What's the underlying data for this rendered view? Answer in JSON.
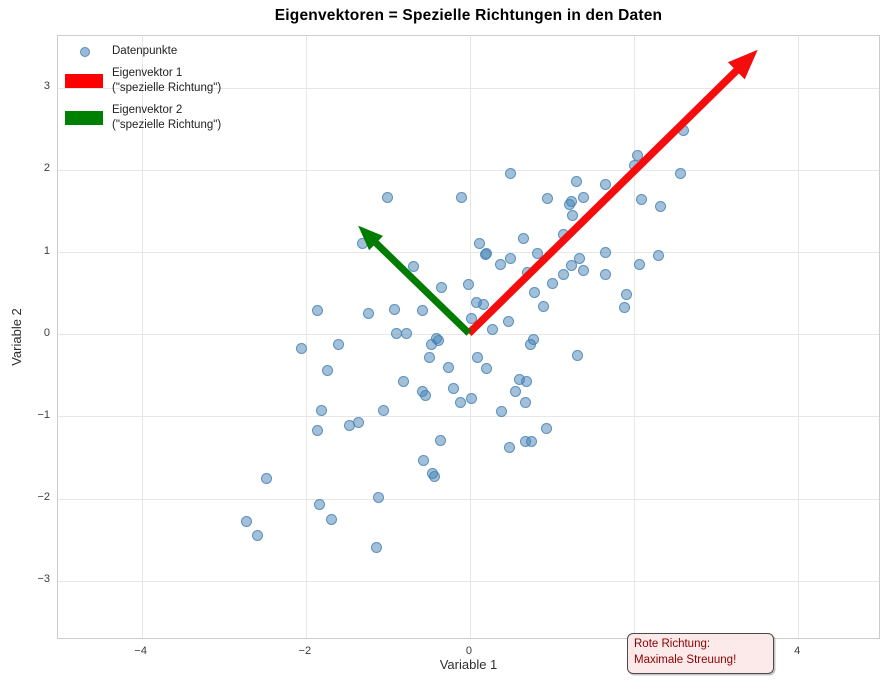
{
  "title": "Eigenvektoren = Spezielle Richtungen in den Daten",
  "legend": {
    "items": [
      {
        "label": "Datenpunkte",
        "marker": "circle",
        "color": "#90b4d2"
      },
      {
        "line1": "Eigenvektor 1",
        "line2": "(\"spezielle Richtung\")",
        "marker": "rect",
        "color": "#ff0000"
      },
      {
        "line1": "Eigenvektor 2",
        "line2": "(\"spezielle Richtung\")",
        "marker": "rect",
        "color": "#008000"
      }
    ]
  },
  "annotation": {
    "line1": "Rote Richtung:",
    "line2": "Maximale Streuung!",
    "text_color": "#8b0000",
    "bg_color": "#fbe9e8",
    "border_color": "#4a4a4a"
  },
  "chart_data": {
    "type": "scatter",
    "title": "Eigenvektoren = Spezielle Richtungen in den Daten",
    "xlabel": "Variable 1",
    "ylabel": "Variable 2",
    "xlim": [
      -5.02,
      5.01
    ],
    "ylim": [
      -3.72,
      3.63
    ],
    "xticks": [
      -4,
      -2,
      0,
      2,
      4
    ],
    "yticks": [
      -3,
      -2,
      -1,
      0,
      1,
      2,
      3
    ],
    "grid": true,
    "legend_position": "upper left",
    "point_color": "#4682b4",
    "point_alpha": 0.55,
    "points": [
      [
        -1.0,
        1.66
      ],
      [
        -0.1,
        1.67
      ],
      [
        -1.31,
        1.1
      ],
      [
        -0.69,
        0.82
      ],
      [
        -0.35,
        0.57
      ],
      [
        0.12,
        1.1
      ],
      [
        0.19,
        0.97
      ],
      [
        -0.02,
        0.61
      ],
      [
        -1.86,
        0.29
      ],
      [
        -1.23,
        0.25
      ],
      [
        -0.92,
        0.3
      ],
      [
        -0.58,
        0.29
      ],
      [
        0.08,
        0.39
      ],
      [
        0.16,
        0.36
      ],
      [
        0.02,
        0.19
      ],
      [
        -0.89,
        0.01
      ],
      [
        -0.77,
        0.01
      ],
      [
        -0.41,
        -0.05
      ],
      [
        0.49,
        1.96
      ],
      [
        2.6,
        2.48
      ],
      [
        2.04,
        2.18
      ],
      [
        2.01,
        2.06
      ],
      [
        2.57,
        1.96
      ],
      [
        1.3,
        1.86
      ],
      [
        1.65,
        1.82
      ],
      [
        0.95,
        1.65
      ],
      [
        1.24,
        1.62
      ],
      [
        1.21,
        1.58
      ],
      [
        1.39,
        1.66
      ],
      [
        1.25,
        1.45
      ],
      [
        0.65,
        1.16
      ],
      [
        1.14,
        1.21
      ],
      [
        0.2,
        0.98
      ],
      [
        0.5,
        0.92
      ],
      [
        0.37,
        0.85
      ],
      [
        0.82,
        0.98
      ],
      [
        1.65,
        0.99
      ],
      [
        1.34,
        0.92
      ],
      [
        1.24,
        0.84
      ],
      [
        1.39,
        0.78
      ],
      [
        1.65,
        0.73
      ],
      [
        0.7,
        0.75
      ],
      [
        1.14,
        0.73
      ],
      [
        1.01,
        0.62
      ],
      [
        0.79,
        0.51
      ],
      [
        0.9,
        0.34
      ],
      [
        1.91,
        0.48
      ],
      [
        1.88,
        0.33
      ],
      [
        2.07,
        0.85
      ],
      [
        2.3,
        0.96
      ],
      [
        2.32,
        1.56
      ],
      [
        2.09,
        1.64
      ],
      [
        0.47,
        0.16
      ],
      [
        0.28,
        0.06
      ],
      [
        0.77,
        -0.06
      ],
      [
        -2.05,
        -0.17
      ],
      [
        -1.6,
        -0.13
      ],
      [
        -1.74,
        -0.44
      ],
      [
        -0.47,
        -0.12
      ],
      [
        -0.49,
        -0.28
      ],
      [
        -0.38,
        -0.08
      ],
      [
        0.09,
        -0.28
      ],
      [
        -0.81,
        -0.58
      ],
      [
        -0.26,
        -0.41
      ],
      [
        -0.58,
        -0.69
      ],
      [
        -0.54,
        -0.75
      ],
      [
        -0.2,
        -0.66
      ],
      [
        0.02,
        -0.78
      ],
      [
        -0.12,
        -0.83
      ],
      [
        -1.81,
        -0.93
      ],
      [
        -1.05,
        -0.93
      ],
      [
        -1.86,
        -1.17
      ],
      [
        -1.47,
        -1.11
      ],
      [
        -1.36,
        -1.07
      ],
      [
        -0.36,
        -1.29
      ],
      [
        -0.57,
        -1.53
      ],
      [
        -0.43,
        -1.73
      ],
      [
        -0.46,
        -1.69
      ],
      [
        -2.48,
        -1.75
      ],
      [
        -1.11,
        -1.98
      ],
      [
        -1.83,
        -2.07
      ],
      [
        -2.72,
        -2.28
      ],
      [
        -1.69,
        -2.25
      ],
      [
        -2.59,
        -2.45
      ],
      [
        -1.14,
        -2.6
      ],
      [
        0.74,
        -0.12
      ],
      [
        1.31,
        -0.26
      ],
      [
        0.2,
        -0.42
      ],
      [
        0.6,
        -0.55
      ],
      [
        0.69,
        -0.58
      ],
      [
        0.55,
        -0.7
      ],
      [
        0.68,
        -0.83
      ],
      [
        0.38,
        -0.94
      ],
      [
        0.93,
        -1.15
      ],
      [
        0.75,
        -1.3
      ],
      [
        0.68,
        -1.3
      ],
      [
        0.48,
        -1.38
      ]
    ],
    "vectors": [
      {
        "name": "Eigenvektor 1",
        "from": [
          0,
          0
        ],
        "to": [
          3.52,
          3.45
        ],
        "color": "#f50d0d",
        "width": 7.5,
        "head_len": 30,
        "head_w": 24
      },
      {
        "name": "Eigenvektor 2",
        "from": [
          0,
          0
        ],
        "to": [
          -1.35,
          1.31
        ],
        "color": "#007d00",
        "width": 7,
        "head_len": 25,
        "head_w": 20
      }
    ]
  }
}
